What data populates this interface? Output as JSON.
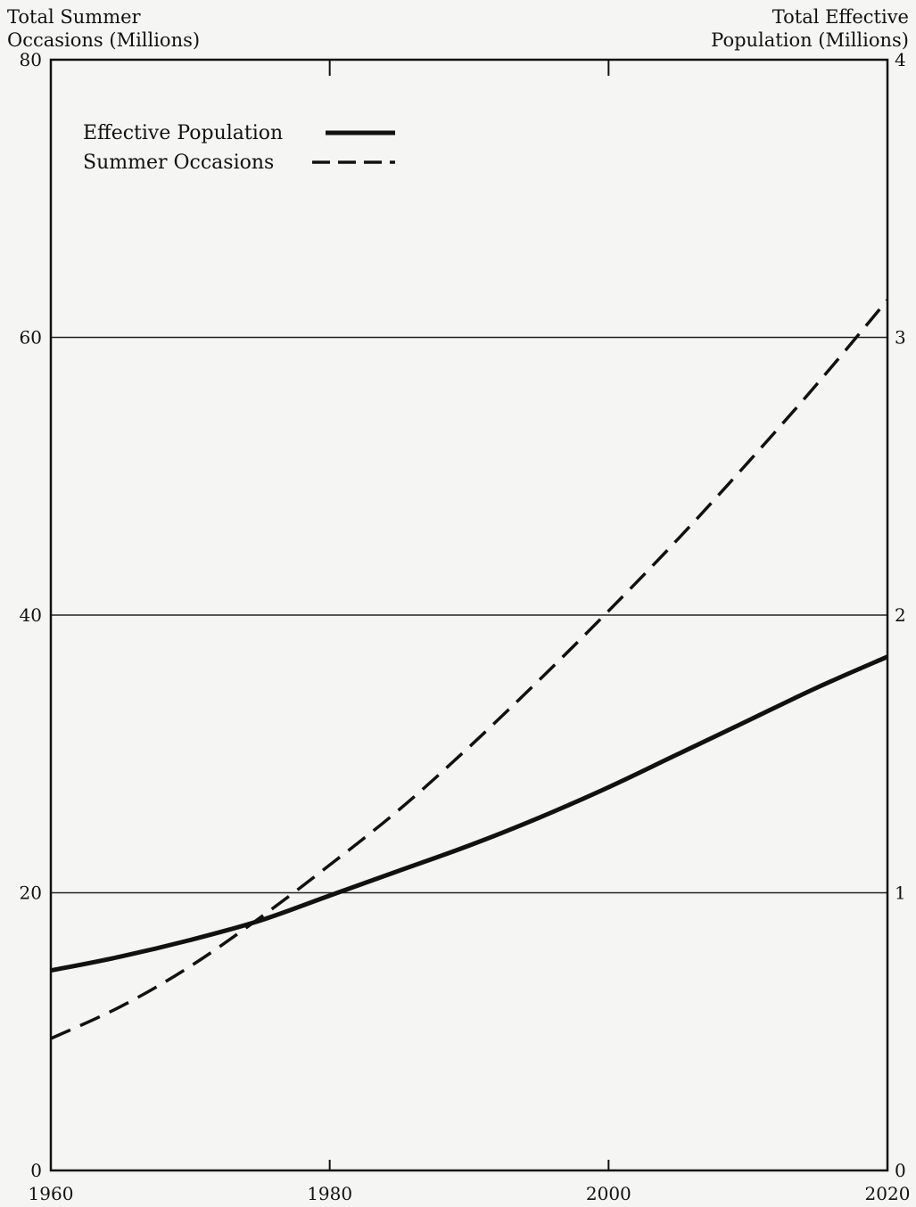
{
  "chart_data": {
    "type": "line",
    "y_left_title": [
      "Total Summer",
      "Occasions (Millions)"
    ],
    "y_right_title": [
      "Total Effective",
      "Population (Millions)"
    ],
    "x": [
      1960,
      1965,
      1970,
      1975,
      1980,
      1985,
      1990,
      1995,
      2000,
      2005,
      2010,
      2015,
      2020
    ],
    "series": [
      {
        "name": "Effective Population",
        "axis": "right",
        "style": "solid",
        "values": [
          0.72,
          0.77,
          0.83,
          0.9,
          0.99,
          1.08,
          1.17,
          1.27,
          1.38,
          1.5,
          1.62,
          1.74,
          1.85
        ]
      },
      {
        "name": "Summer Occasions",
        "axis": "left",
        "style": "dashed",
        "values": [
          9.5,
          11.8,
          14.7,
          18.2,
          22.0,
          26.0,
          30.5,
          35.3,
          40.3,
          45.5,
          51.0,
          56.7,
          62.7
        ]
      }
    ],
    "x_ticks": [
      "1960",
      "1980",
      "2000",
      "2020"
    ],
    "x_tick_values": [
      1960,
      1980,
      2000,
      2020
    ],
    "y_left_ticks": [
      "0",
      "20",
      "40",
      "60",
      "80"
    ],
    "y_left_tick_values": [
      0,
      20,
      40,
      60,
      80
    ],
    "y_right_ticks": [
      "0",
      "1",
      "2",
      "3",
      "4"
    ],
    "y_right_tick_values": [
      0,
      1,
      2,
      3,
      4
    ],
    "xlim": [
      1960,
      2020
    ],
    "ylim_left": [
      0,
      80
    ],
    "ylim_right": [
      0,
      4
    ],
    "grid": "horizontal",
    "legend_position": "top-left"
  }
}
